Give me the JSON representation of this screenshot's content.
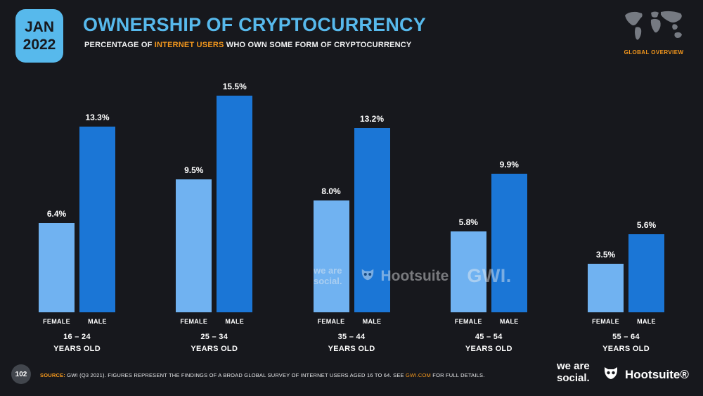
{
  "badge": {
    "line1": "JAN",
    "line2": "2022"
  },
  "header": {
    "title": "OWNERSHIP OF CRYPTOCURRENCY",
    "subtitle_prefix": "PERCENTAGE OF ",
    "subtitle_highlight": "INTERNET USERS",
    "subtitle_suffix": " WHO OWN SOME FORM OF CRYPTOCURRENCY",
    "corner_label": "GLOBAL OVERVIEW"
  },
  "chart_data": {
    "type": "bar",
    "categories": [
      "16 – 24",
      "25 – 34",
      "35 – 44",
      "45 – 54",
      "55 – 64"
    ],
    "category_suffix": "YEARS OLD",
    "series": [
      {
        "name": "FEMALE",
        "color": "#70b2f1",
        "values": [
          6.4,
          9.5,
          8.0,
          5.8,
          3.5
        ]
      },
      {
        "name": "MALE",
        "color": "#1b76d6",
        "values": [
          13.3,
          15.5,
          13.2,
          9.9,
          5.6
        ]
      }
    ],
    "value_suffix": "%",
    "ylim": [
      0,
      15.5
    ],
    "title": "OWNERSHIP OF CRYPTOCURRENCY",
    "xlabel": "",
    "ylabel": "",
    "grid": false,
    "legend_position": "below-bars"
  },
  "watermarks": {
    "wearesocial_line1": "we are",
    "wearesocial_line2": "social.",
    "hootsuite": "Hootsuite",
    "gwi": "GWI."
  },
  "footer": {
    "page_number": "102",
    "source_label": "SOURCE:",
    "source_text_1": " GWI (Q3 2021). FIGURES REPRESENT THE FINDINGS OF A BROAD GLOBAL SURVEY OF INTERNET USERS AGED 16 TO 64. SEE ",
    "source_link": "GWI.COM",
    "source_text_2": " FOR FULL DETAILS.",
    "logo_wearesocial_line1": "we are",
    "logo_wearesocial_line2": "social.",
    "logo_hootsuite": "Hootsuite®"
  },
  "colors": {
    "background": "#17181d",
    "accent_blue": "#57b9ec",
    "accent_orange": "#f5981d",
    "female_bar": "#70b2f1",
    "male_bar": "#1b76d6"
  }
}
